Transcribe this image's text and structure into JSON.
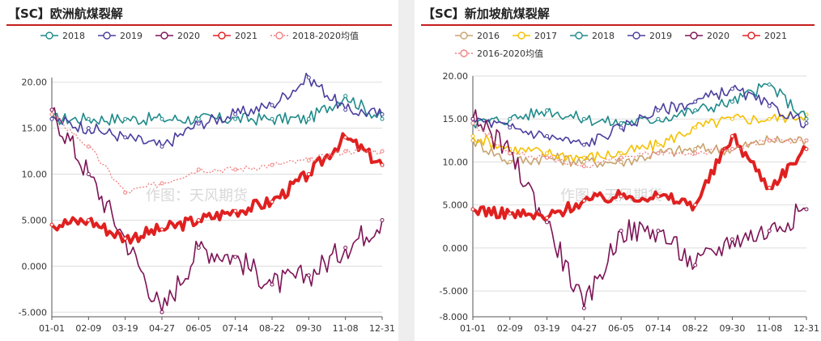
{
  "charts": [
    {
      "title": "【SC】欧洲航煤裂解",
      "type": "line",
      "legend": [
        "2018",
        "2019",
        "2020",
        "2021",
        "2018-2020均值"
      ],
      "watermark": "作图：天风期货",
      "x_ticks": [
        "01-01",
        "02-09",
        "03-19",
        "04-27",
        "06-05",
        "07-14",
        "08-22",
        "09-30",
        "11-08",
        "12-31"
      ],
      "y_ticks": [
        "20.00",
        "15.00",
        "10.00",
        "5.000",
        "0.000",
        "-5.000"
      ],
      "ylim": [
        -5.5,
        20.5
      ],
      "colors": {
        "2018": "#1f8a8a",
        "2019": "#4a3e9e",
        "2020": "#7d1456",
        "2021": "#e02020",
        "2018-2020均值": "#f08080"
      }
    },
    {
      "title": "【SC】新加坡航煤裂解",
      "type": "line",
      "legend": [
        "2016",
        "2017",
        "2018",
        "2019",
        "2020",
        "2021",
        "2016-2020均值"
      ],
      "watermark": "作图：天风期货",
      "x_ticks": [
        "01-01",
        "02-09",
        "03-19",
        "04-27",
        "06-05",
        "07-14",
        "08-22",
        "09-30",
        "11-08",
        "12-31"
      ],
      "y_ticks": [
        "20.00",
        "15.00",
        "10.00",
        "5.000",
        "0.000",
        "-5.000",
        "-8.000"
      ],
      "ylim": [
        -8,
        20
      ],
      "colors": {
        "2016": "#c8a46e",
        "2017": "#f5c000",
        "2018": "#1f8a8a",
        "2019": "#4a3e9e",
        "2020": "#7d1456",
        "2021": "#e02020",
        "2016-2020均值": "#f08080"
      }
    }
  ],
  "chart_data": [
    {
      "type": "line",
      "title": "【SC】欧洲航煤裂解",
      "xlabel": "",
      "ylabel": "",
      "x": [
        "01-01",
        "02-09",
        "03-19",
        "04-27",
        "06-05",
        "07-14",
        "08-22",
        "09-30",
        "11-08",
        "12-31"
      ],
      "ylim": [
        -5.5,
        20.5
      ],
      "series": [
        {
          "name": "2018",
          "values": [
            16.0,
            16.0,
            16.0,
            16.0,
            16.0,
            16.0,
            16.0,
            16.0,
            18.5,
            16.0
          ]
        },
        {
          "name": "2019",
          "values": [
            16.0,
            15.0,
            14.0,
            13.0,
            15.5,
            16.5,
            17.5,
            20.5,
            17.0,
            16.5
          ]
        },
        {
          "name": "2020",
          "values": [
            17.0,
            10.0,
            3.0,
            -5.0,
            2.0,
            1.0,
            -2.0,
            -1.0,
            2.0,
            5.0
          ]
        },
        {
          "name": "2021",
          "values": [
            4.5,
            5.0,
            3.0,
            4.0,
            5.0,
            6.0,
            7.0,
            10.0,
            14.0,
            11.0
          ]
        },
        {
          "name": "2018-2020均值",
          "values": [
            16.5,
            13.0,
            8.0,
            9.0,
            10.5,
            10.5,
            11.0,
            11.5,
            12.5,
            12.5
          ]
        }
      ]
    },
    {
      "type": "line",
      "title": "【SC】新加坡航煤裂解",
      "xlabel": "",
      "ylabel": "",
      "x": [
        "01-01",
        "02-09",
        "03-19",
        "04-27",
        "06-05",
        "07-14",
        "08-22",
        "09-30",
        "11-08",
        "12-31"
      ],
      "ylim": [
        -8,
        20
      ],
      "series": [
        {
          "name": "2016",
          "values": [
            12.5,
            10.0,
            10.5,
            10.0,
            10.0,
            11.0,
            11.5,
            11.5,
            12.5,
            12.5
          ]
        },
        {
          "name": "2017",
          "values": [
            13.0,
            11.5,
            11.0,
            10.5,
            11.0,
            12.0,
            14.0,
            15.0,
            15.0,
            15.5
          ]
        },
        {
          "name": "2018",
          "values": [
            14.5,
            15.0,
            16.0,
            15.0,
            14.5,
            15.0,
            16.0,
            17.0,
            19.0,
            15.0
          ]
        },
        {
          "name": "2019",
          "values": [
            15.0,
            14.0,
            13.0,
            12.0,
            14.0,
            16.0,
            17.0,
            18.5,
            16.5,
            14.5
          ]
        },
        {
          "name": "2020",
          "values": [
            15.0,
            11.0,
            3.0,
            -7.0,
            2.0,
            2.0,
            -2.0,
            1.0,
            2.0,
            4.5
          ]
        },
        {
          "name": "2021",
          "values": [
            4.5,
            4.0,
            3.5,
            5.5,
            6.0,
            6.0,
            5.0,
            13.0,
            7.0,
            11.5
          ]
        },
        {
          "name": "2016-2020均值",
          "values": [
            14.5,
            11.0,
            10.5,
            9.5,
            10.5,
            11.0,
            11.0,
            11.5,
            12.5,
            12.5
          ]
        }
      ]
    }
  ]
}
